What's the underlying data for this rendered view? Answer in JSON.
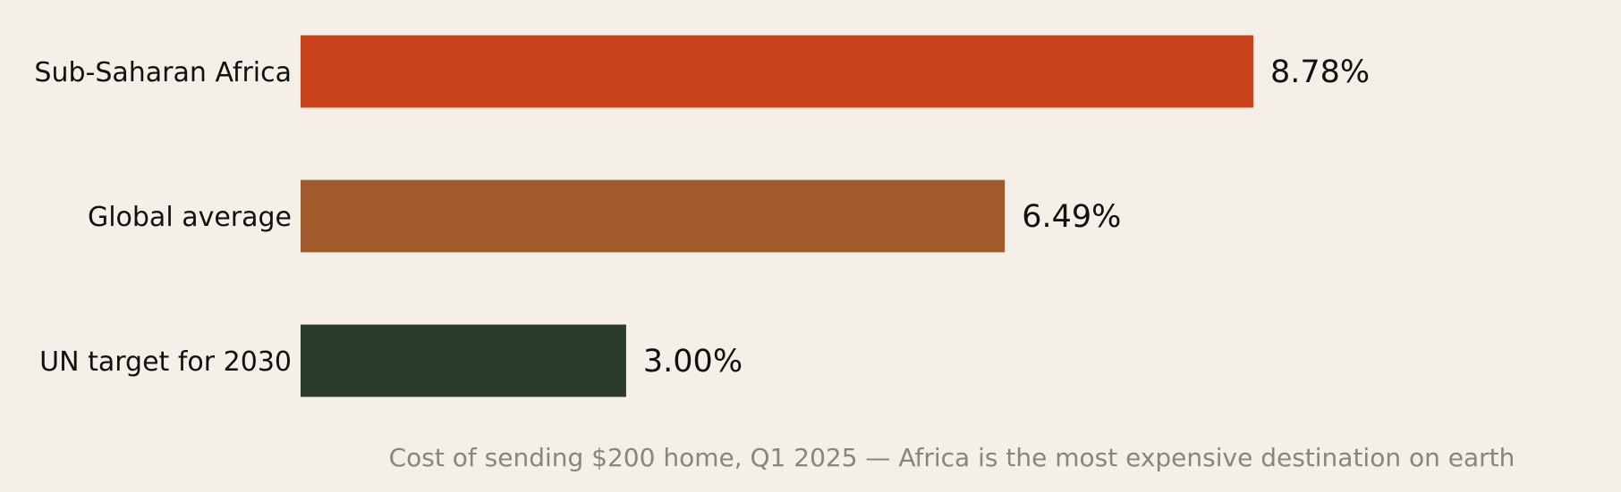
{
  "chart_data": {
    "type": "bar",
    "orientation": "horizontal",
    "categories": [
      "Sub-Saharan Africa",
      "Global average",
      "UN target for 2030"
    ],
    "values": [
      8.78,
      6.49,
      3.0
    ],
    "value_labels": [
      "8.78%",
      "6.49%",
      "3.00%"
    ],
    "colors": [
      "#c8431b",
      "#a05a2c",
      "#2b3c2a"
    ],
    "title": "",
    "caption": "Cost of sending $200 home, Q1 2025 — Africa is the most expensive destination on earth",
    "xlabel": "",
    "ylabel": "",
    "xlim": [
      0,
      10
    ],
    "grid": false,
    "legend": "none"
  }
}
